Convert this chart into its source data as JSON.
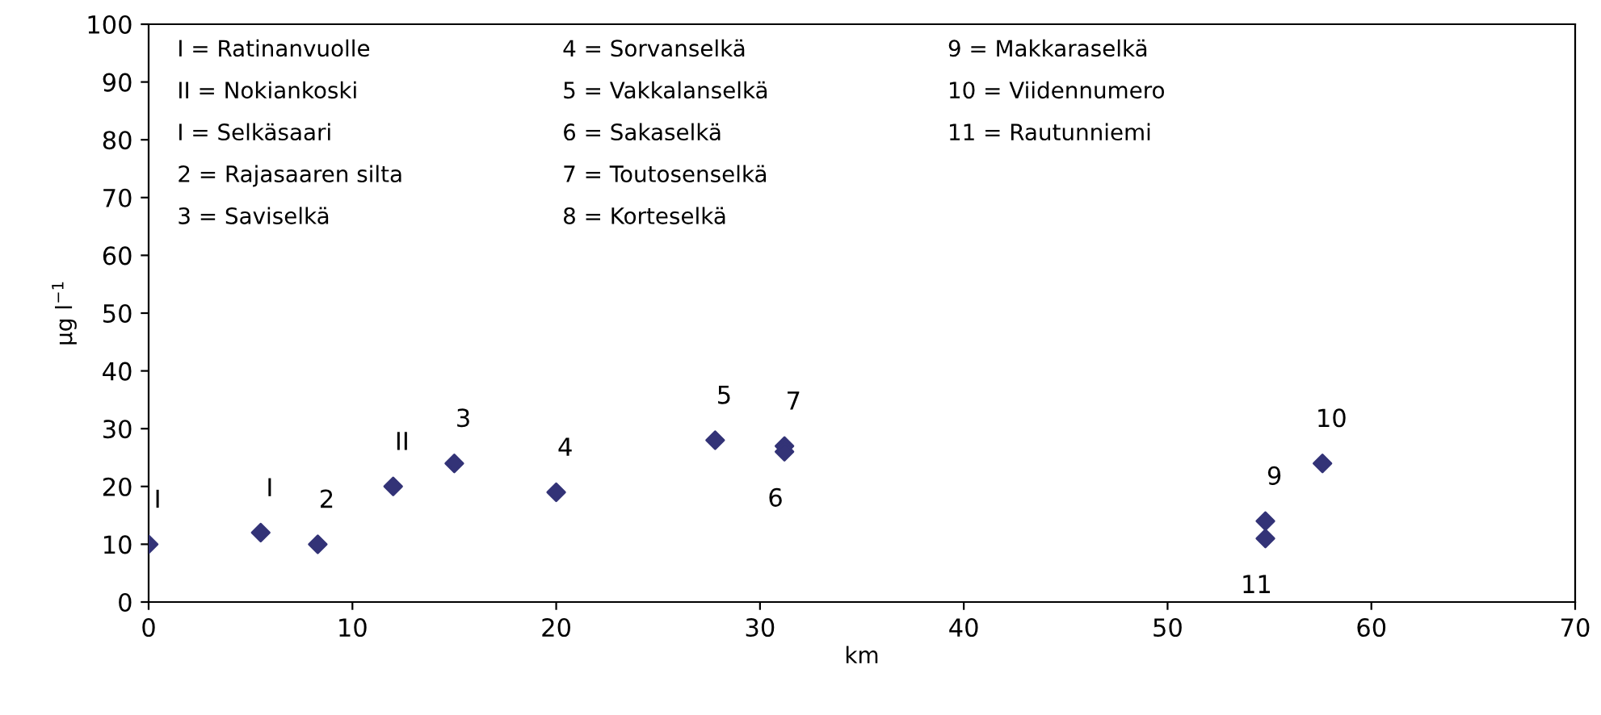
{
  "chart_data": {
    "type": "scatter",
    "xlabel": "km",
    "ylabel": "µg l$^{−1}$",
    "x": [
      0,
      5.5,
      8.3,
      12,
      15,
      20,
      27.8,
      31.2,
      31.2,
      54.8,
      54.8,
      57.6
    ],
    "values": [
      10,
      12,
      10,
      20,
      24,
      19,
      28,
      27,
      26,
      14,
      11,
      24
    ],
    "color": "#333377",
    "marker": "diamond",
    "xlim": [
      0,
      70
    ],
    "xticks": [
      0,
      10,
      20,
      30,
      40,
      50,
      60,
      70
    ],
    "ylim": [
      0,
      100
    ],
    "yticks": [
      0,
      10,
      20,
      30,
      40,
      50,
      60,
      70,
      80,
      90,
      100
    ],
    "grid": false,
    "annotations": [
      {
        "text": "I",
        "x": 0,
        "y": 10
      },
      {
        "text": "I",
        "x": 5.5,
        "y": 12
      },
      {
        "text": "2",
        "x": 8.3,
        "y": 10
      },
      {
        "text": "II",
        "x": 12,
        "y": 20
      },
      {
        "text": "3",
        "x": 15,
        "y": 24
      },
      {
        "text": "4",
        "x": 20,
        "y": 19
      },
      {
        "text": "5",
        "x": 27.8,
        "y": 28
      },
      {
        "text": "7",
        "x": 31.2,
        "y": 27
      },
      {
        "text": "6",
        "x": 31.2,
        "y": 26
      },
      {
        "text": "9",
        "x": 54.8,
        "y": 14
      },
      {
        "text": "11",
        "x": 54.8,
        "y": 11
      },
      {
        "text": "10",
        "x": 57.6,
        "y": 24
      },
      "I = Ratinanvuolle",
      "II = Nokiankoski",
      "I = Selkäsaari",
      "2 = Rajasaaren silta",
      "3 = Saviselkä",
      "4 = Sorvanselkä",
      "5 = Vakkalanselkä",
      "6 = Sakaselkä",
      "7 = Toutosenselkä",
      "8 = Korteselkä",
      "9 = Makkaraselkä",
      "10 = Viidennumero",
      "11 = Rautunniemi"
    ]
  }
}
